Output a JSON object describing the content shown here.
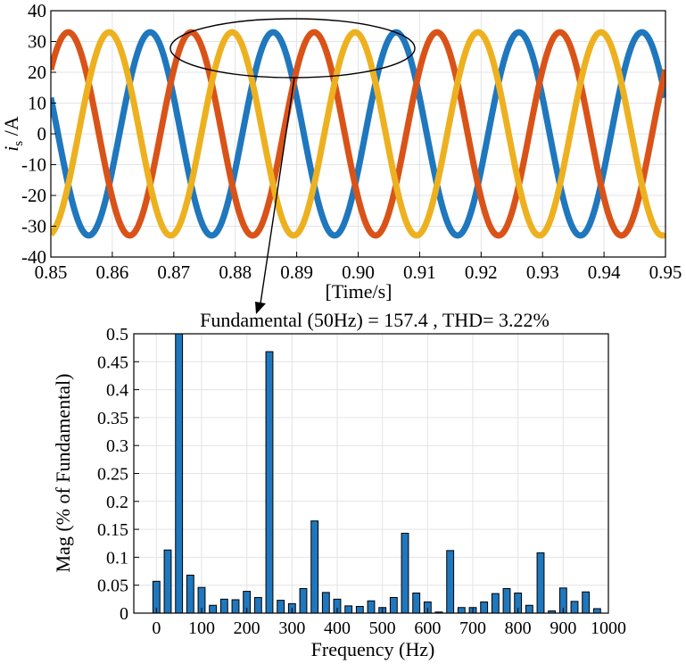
{
  "chart_data": [
    {
      "type": "line",
      "ylabel_main": "i",
      "ylabel_sub": "s",
      "ylabel_unit": " /A",
      "xlabel": "[Time/s]",
      "xlim": [
        0.85,
        0.95
      ],
      "ylim": [
        -40,
        40
      ],
      "x_ticks": [
        "0.85",
        "0.86",
        "0.87",
        "0.88",
        "0.89",
        "0.90",
        "0.91",
        "0.92",
        "0.93",
        "0.94",
        "0.95"
      ],
      "y_ticks": [
        "40",
        "30",
        "20",
        "10",
        "0",
        "-10",
        "-20",
        "-30",
        "-40"
      ],
      "grid": true,
      "frequency_hz": 50,
      "amplitude": 33,
      "series": [
        {
          "phase_deg": 0,
          "color": "#1f77bd"
        },
        {
          "phase_deg": -120,
          "color": "#d95319"
        },
        {
          "phase_deg": 120,
          "color": "#edb120"
        }
      ]
    },
    {
      "type": "bar",
      "title": "Fundamental (50Hz) = 157.4 , THD= 3.22%",
      "xlabel": "Frequency (Hz)",
      "ylabel": "Mag (% of Fundamental)",
      "xlim": [
        -50,
        1000
      ],
      "ylim": [
        0,
        0.5
      ],
      "x_ticks": [
        "0",
        "100",
        "200",
        "300",
        "400",
        "500",
        "600",
        "700",
        "800",
        "900",
        "1000"
      ],
      "y_ticks": [
        "0.5",
        "0.45",
        "0.4",
        "0.35",
        "0.3",
        "0.25",
        "0.2",
        "0.15",
        "0.1",
        "0.05",
        "0"
      ],
      "grid": true,
      "bar_color": "#1f77bd",
      "x": [
        0,
        25,
        50,
        75,
        100,
        125,
        150,
        175,
        200,
        225,
        250,
        275,
        300,
        325,
        350,
        375,
        400,
        425,
        450,
        475,
        500,
        525,
        550,
        575,
        600,
        625,
        650,
        675,
        700,
        725,
        750,
        775,
        800,
        825,
        850,
        875,
        900,
        925,
        950,
        975
      ],
      "values": [
        0.057,
        0.113,
        0.5,
        0.068,
        0.046,
        0.014,
        0.025,
        0.024,
        0.039,
        0.028,
        0.468,
        0.023,
        0.017,
        0.044,
        0.165,
        0.037,
        0.025,
        0.013,
        0.012,
        0.022,
        0.01,
        0.028,
        0.143,
        0.036,
        0.02,
        0.002,
        0.112,
        0.01,
        0.01,
        0.02,
        0.035,
        0.044,
        0.036,
        0.014,
        0.108,
        0.004,
        0.045,
        0.021,
        0.038,
        0.008
      ]
    }
  ]
}
